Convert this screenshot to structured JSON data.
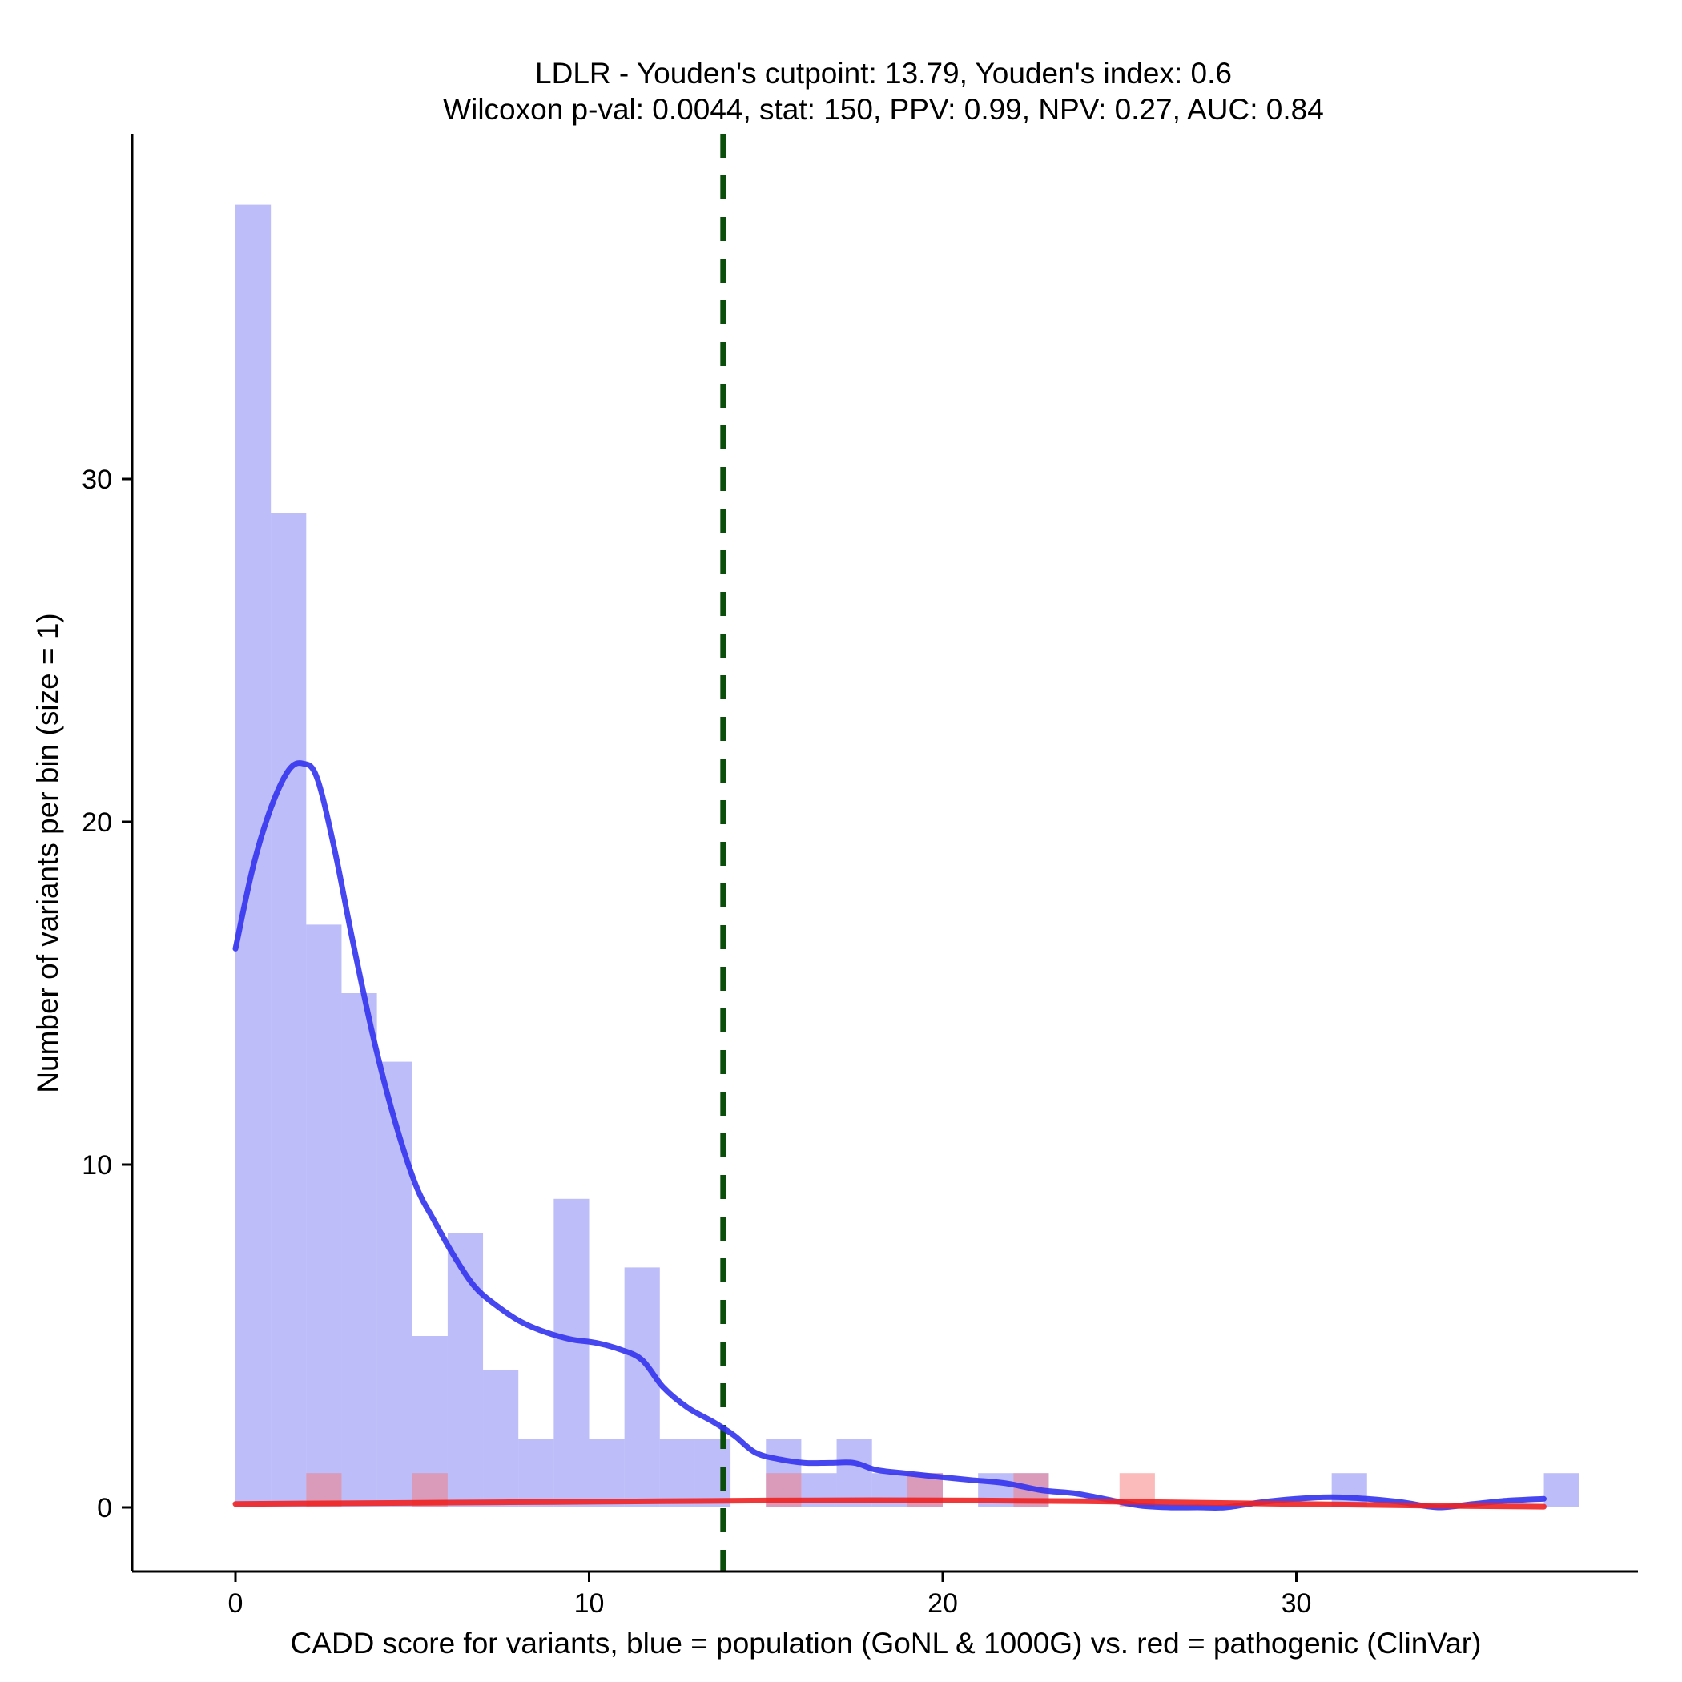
{
  "chart_data": {
    "type": "histogram",
    "title": "LDLR - Youden's cutpoint: 13.79, Youden's index: 0.6",
    "subtitle": "Wilcoxon p-val: 0.0044, stat: 150, PPV: 0.99, NPV: 0.27, AUC: 0.84",
    "xlabel": "CADD score for variants, blue = population (GoNL & 1000G) vs. red = pathogenic (ClinVar)",
    "ylabel": "Number of variants per bin (size = 1)",
    "xlim": [
      -2.9,
      39.8
    ],
    "ylim": [
      -1.9,
      40.0
    ],
    "xticks": [
      0,
      10,
      20,
      30
    ],
    "yticks": [
      0,
      10,
      20,
      30
    ],
    "bin_width": 1,
    "cutpoint": 13.79,
    "series": [
      {
        "name": "population (GoNL & 1000G)",
        "color": "#7b7bf5",
        "opacity": 0.5,
        "bins": [
          {
            "x": 0,
            "count": 38
          },
          {
            "x": 1,
            "count": 29
          },
          {
            "x": 2,
            "count": 17
          },
          {
            "x": 3,
            "count": 15
          },
          {
            "x": 4,
            "count": 13
          },
          {
            "x": 5,
            "count": 5
          },
          {
            "x": 6,
            "count": 8
          },
          {
            "x": 7,
            "count": 4
          },
          {
            "x": 8,
            "count": 2
          },
          {
            "x": 9,
            "count": 9
          },
          {
            "x": 10,
            "count": 2
          },
          {
            "x": 11,
            "count": 7
          },
          {
            "x": 12,
            "count": 2
          },
          {
            "x": 13,
            "count": 2
          },
          {
            "x": 15,
            "count": 2
          },
          {
            "x": 16,
            "count": 1
          },
          {
            "x": 17,
            "count": 2
          },
          {
            "x": 18,
            "count": 1
          },
          {
            "x": 19,
            "count": 1
          },
          {
            "x": 21,
            "count": 1
          },
          {
            "x": 22,
            "count": 1
          },
          {
            "x": 31,
            "count": 1
          },
          {
            "x": 37,
            "count": 1
          }
        ]
      },
      {
        "name": "pathogenic (ClinVar)",
        "color": "#f87878",
        "opacity": 0.5,
        "bins": [
          {
            "x": 2,
            "count": 1
          },
          {
            "x": 5,
            "count": 1
          },
          {
            "x": 15,
            "count": 1
          },
          {
            "x": 19,
            "count": 1
          },
          {
            "x": 22,
            "count": 1
          },
          {
            "x": 25,
            "count": 1
          }
        ]
      }
    ],
    "density_curves": [
      {
        "name": "population density",
        "color": "#3333ee",
        "x": [
          0,
          0.5,
          1,
          1.5,
          1.9,
          2.3,
          2.8,
          3.3,
          3.9,
          4.5,
          5.1,
          5.6,
          6.2,
          6.8,
          7.5,
          8.1,
          8.8,
          9.5,
          10.2,
          10.9,
          11.5,
          12.1,
          12.8,
          13.5,
          14.1,
          14.7,
          15.4,
          16.1,
          16.8,
          17.5,
          18.1,
          18.9,
          19.8,
          20.8,
          21.8,
          22.8,
          23.8,
          24.8,
          25.6,
          26.4,
          27.2,
          28,
          29,
          30,
          31,
          32,
          33,
          34,
          35,
          36,
          37
        ],
        "y": [
          16.3,
          18.7,
          20.4,
          21.5,
          21.7,
          21.3,
          19.2,
          16.6,
          13.7,
          11.3,
          9.4,
          8.4,
          7.3,
          6.4,
          5.8,
          5.4,
          5.1,
          4.9,
          4.8,
          4.6,
          4.3,
          3.5,
          2.9,
          2.5,
          2.1,
          1.6,
          1.4,
          1.3,
          1.3,
          1.3,
          1.1,
          1.0,
          0.9,
          0.8,
          0.7,
          0.5,
          0.4,
          0.2,
          0.05,
          0.0,
          0.0,
          0.0,
          0.15,
          0.25,
          0.3,
          0.25,
          0.15,
          0.0,
          0.1,
          0.2,
          0.25
        ]
      },
      {
        "name": "pathogenic density",
        "color": "#ee2222",
        "x": [
          0,
          3,
          6,
          9,
          12,
          15,
          18,
          21,
          24,
          27,
          30,
          33,
          37
        ],
        "y": [
          0.1,
          0.12,
          0.14,
          0.16,
          0.18,
          0.2,
          0.21,
          0.2,
          0.18,
          0.14,
          0.1,
          0.06,
          0.02
        ]
      }
    ]
  }
}
